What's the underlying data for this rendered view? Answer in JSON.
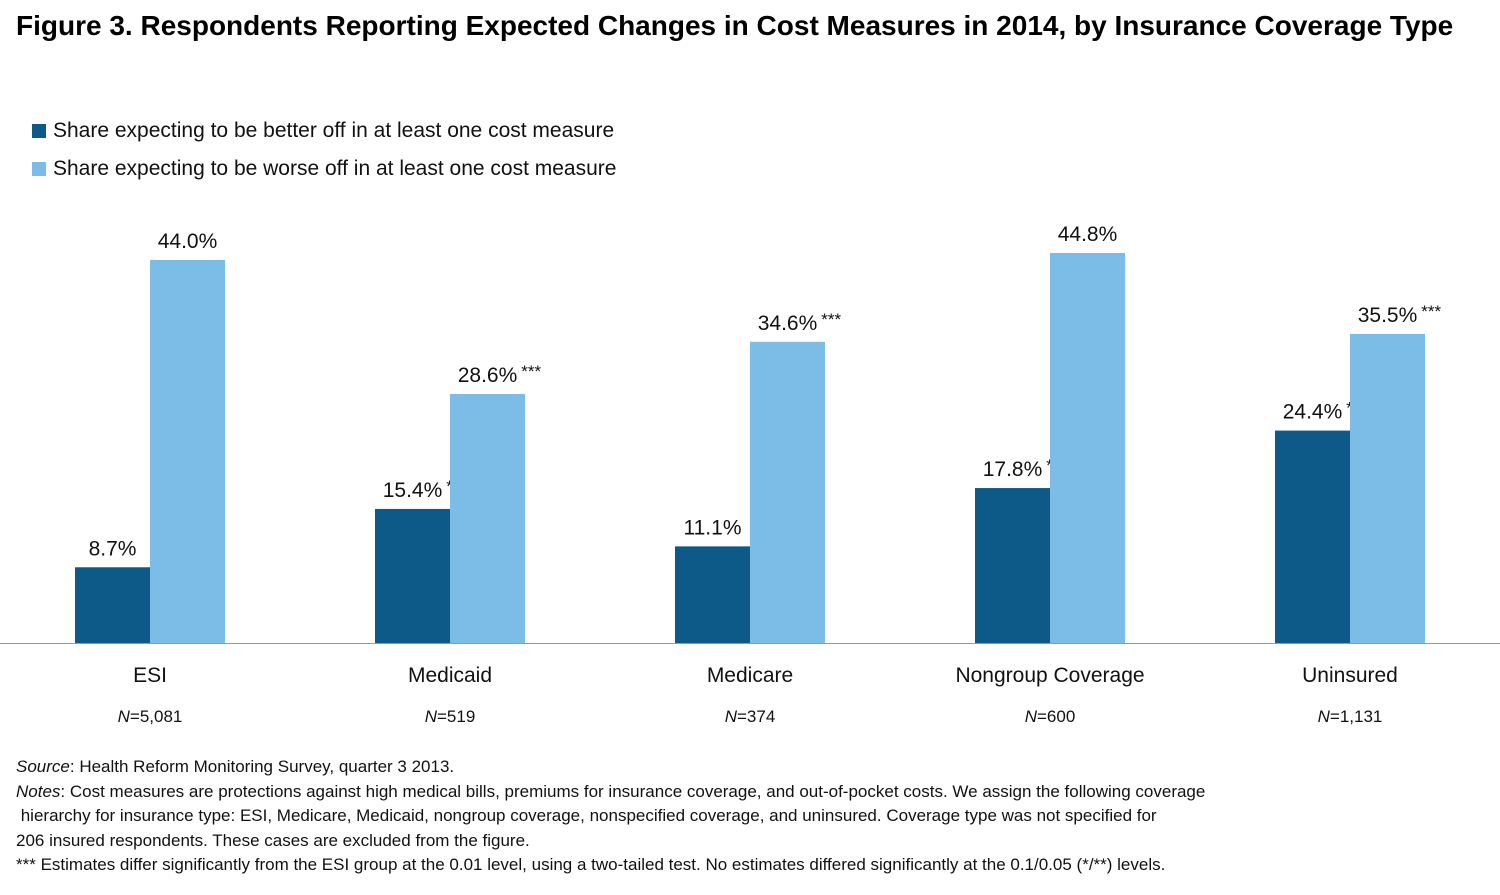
{
  "title": "Figure 3. Respondents Reporting Expected Changes in Cost Measures in 2014, by Insurance Coverage Type",
  "colors": {
    "better": "#0d5a89",
    "worse": "#7bbde6",
    "axis": "#999999"
  },
  "chart_data": {
    "type": "bar",
    "categories": [
      "ESI",
      "Medicaid",
      "Medicare",
      "Nongroup Coverage",
      "Uninsured"
    ],
    "sample_sizes": [
      "=5,081",
      "=519",
      "=374",
      "=600",
      "=1,131"
    ],
    "n_label": "N",
    "series": [
      {
        "name": "Share expecting to be better off in at least one cost measure",
        "values": [
          8.7,
          15.4,
          11.1,
          17.8,
          24.4
        ],
        "labels": [
          "8.7%",
          "15.4%",
          "11.1%",
          "17.8%",
          "24.4%"
        ],
        "significance": [
          "",
          "***",
          "",
          "***",
          "***"
        ]
      },
      {
        "name": "Share expecting to be worse off in at least one cost measure",
        "values": [
          44.0,
          28.6,
          34.6,
          44.8,
          35.5
        ],
        "labels": [
          "44.0%",
          "28.6%",
          "34.6%",
          "44.8%",
          "35.5%"
        ],
        "significance": [
          "",
          "***",
          "***",
          "",
          "***"
        ]
      }
    ],
    "ylim": [
      0,
      44.8
    ],
    "grid": false,
    "legend_position": "top-left"
  },
  "footnotes": {
    "source_label": "Source",
    "source_text": ": Health Reform Monitoring Survey, quarter 3 2013.",
    "notes_label": "Notes",
    "notes_line1": ": Cost measures are protections against high medical bills, premiums for insurance coverage, and out-of-pocket costs. We assign the following coverage",
    "notes_line2": " hierarchy for insurance type: ESI, Medicare, Medicaid, nongroup coverage, nonspecified coverage, and uninsured. Coverage type was not specified for",
    "notes_line3": "206 insured respondents. These cases are excluded from the figure.",
    "significance_note": "*** Estimates differ significantly from the ESI group at the 0.01 level, using a two-tailed test. No estimates differed significantly at the 0.1/0.05 (*/**) levels."
  }
}
